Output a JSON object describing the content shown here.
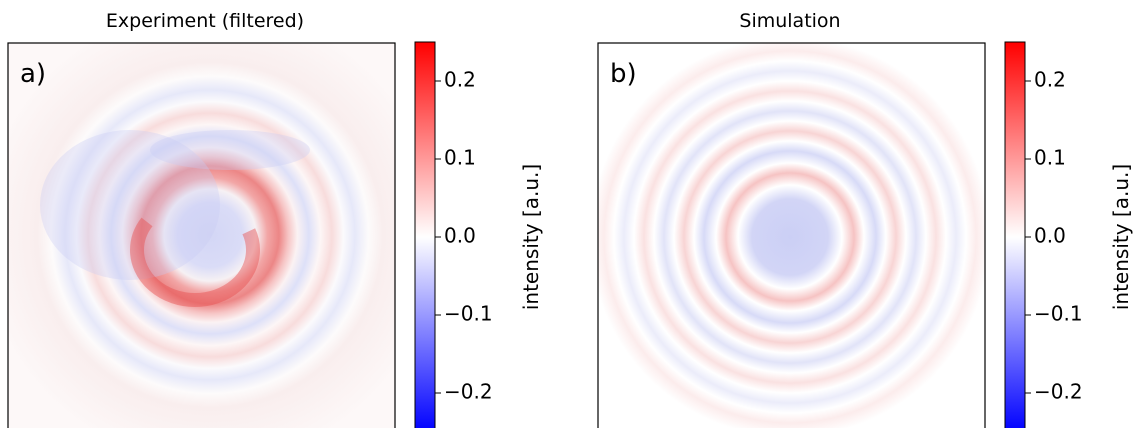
{
  "chart_data": [
    {
      "type": "heatmap",
      "title": "Experiment (filtered)",
      "annotation": "a)",
      "colorbar_label": "intensity [a.u.]",
      "clim": [
        -0.25,
        0.25
      ],
      "cticks": [
        {
          "value": -0.2,
          "label": "−0.2"
        },
        {
          "value": -0.1,
          "label": "−0.1"
        },
        {
          "value": 0,
          "label": "0.0"
        },
        0.1,
        0.2
      ]
    },
    {
      "type": "heatmap",
      "title": "Simulation",
      "annotation": "b)",
      "colorbar_label": "intensity [a.u.]",
      "clim": [
        -0.25,
        0.25
      ],
      "cticks": [
        {
          "value": -0.2,
          "label": "−0.2"
        },
        {
          "value": -0.1,
          "label": "−0.1"
        },
        {
          "value": 0,
          "label": "0.0"
        },
        0.1,
        0.2
      ]
    }
  ]
}
